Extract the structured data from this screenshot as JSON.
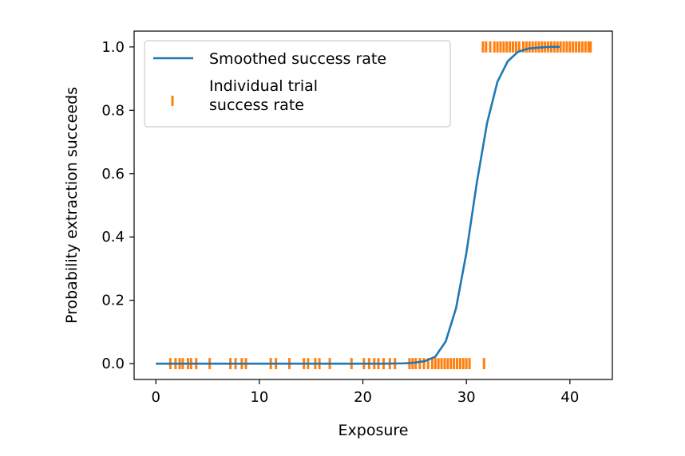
{
  "chart_data": {
    "type": "line",
    "title": "",
    "xlabel": "Exposure",
    "ylabel": "Probability extraction succeeds",
    "xlim": [
      -2.1,
      44.1
    ],
    "ylim": [
      -0.05,
      1.05
    ],
    "xticks": [
      0,
      10,
      20,
      30,
      40
    ],
    "xtick_labels": [
      "0",
      "10",
      "20",
      "30",
      "40"
    ],
    "yticks": [
      0.0,
      0.2,
      0.4,
      0.6,
      0.8,
      1.0
    ],
    "ytick_labels": [
      "0.0",
      "0.2",
      "0.4",
      "0.6",
      "0.8",
      "1.0"
    ],
    "grid": false,
    "legend_position": "top-left",
    "series": [
      {
        "name": "Smoothed success rate",
        "kind": "line",
        "color": "#1f77b4",
        "x": [
          0,
          2,
          4,
          6,
          8,
          10,
          12,
          14,
          16,
          18,
          20,
          22,
          24,
          25,
          26,
          27,
          28,
          29,
          30,
          31,
          32,
          33,
          34,
          35,
          36,
          37,
          38,
          39
        ],
        "y": [
          0,
          0,
          0,
          0,
          0,
          0,
          0,
          0,
          0,
          0,
          0,
          0,
          0.001,
          0.003,
          0.008,
          0.022,
          0.07,
          0.175,
          0.35,
          0.57,
          0.76,
          0.89,
          0.955,
          0.985,
          0.995,
          0.998,
          1.0,
          1.0
        ]
      },
      {
        "name": "Individual trial\nsuccess rate",
        "kind": "ticks",
        "color": "#ff7f0e",
        "points": [
          [
            1.4,
            0
          ],
          [
            1.9,
            0
          ],
          [
            2.3,
            0
          ],
          [
            2.6,
            0
          ],
          [
            3.1,
            0
          ],
          [
            3.4,
            0
          ],
          [
            3.9,
            0
          ],
          [
            5.2,
            0
          ],
          [
            7.2,
            0
          ],
          [
            7.7,
            0
          ],
          [
            8.3,
            0
          ],
          [
            8.7,
            0
          ],
          [
            11.1,
            0
          ],
          [
            11.6,
            0
          ],
          [
            12.9,
            0
          ],
          [
            14.3,
            0
          ],
          [
            14.7,
            0
          ],
          [
            15.4,
            0
          ],
          [
            15.8,
            0
          ],
          [
            16.8,
            0
          ],
          [
            18.9,
            0
          ],
          [
            20.1,
            0
          ],
          [
            20.6,
            0
          ],
          [
            21.1,
            0
          ],
          [
            21.5,
            0
          ],
          [
            22.0,
            0
          ],
          [
            22.6,
            0
          ],
          [
            23.1,
            0
          ],
          [
            24.5,
            0
          ],
          [
            24.8,
            0
          ],
          [
            25.1,
            0
          ],
          [
            25.5,
            0
          ],
          [
            25.9,
            0
          ],
          [
            26.3,
            0
          ],
          [
            26.7,
            0
          ],
          [
            27.0,
            0
          ],
          [
            27.3,
            0
          ],
          [
            27.6,
            0
          ],
          [
            27.9,
            0
          ],
          [
            28.2,
            0
          ],
          [
            28.5,
            0
          ],
          [
            28.8,
            0
          ],
          [
            29.1,
            0
          ],
          [
            29.4,
            0
          ],
          [
            29.7,
            0
          ],
          [
            30.0,
            0
          ],
          [
            30.3,
            0
          ],
          [
            31.7,
            0
          ],
          [
            31.6,
            1
          ],
          [
            31.9,
            1
          ],
          [
            32.3,
            1
          ],
          [
            32.7,
            1
          ],
          [
            33.0,
            1
          ],
          [
            33.3,
            1
          ],
          [
            33.6,
            1
          ],
          [
            33.9,
            1
          ],
          [
            34.2,
            1
          ],
          [
            34.5,
            1
          ],
          [
            34.8,
            1
          ],
          [
            35.1,
            1
          ],
          [
            35.5,
            1
          ],
          [
            35.8,
            1
          ],
          [
            36.1,
            1
          ],
          [
            36.4,
            1
          ],
          [
            36.7,
            1
          ],
          [
            37.0,
            1
          ],
          [
            37.3,
            1
          ],
          [
            37.6,
            1
          ],
          [
            37.9,
            1
          ],
          [
            38.2,
            1
          ],
          [
            38.5,
            1
          ],
          [
            38.8,
            1
          ],
          [
            39.1,
            1
          ],
          [
            39.4,
            1
          ],
          [
            39.7,
            1
          ],
          [
            40.0,
            1
          ],
          [
            40.3,
            1
          ],
          [
            40.6,
            1
          ],
          [
            40.9,
            1
          ],
          [
            41.2,
            1
          ],
          [
            41.5,
            1
          ],
          [
            41.8,
            1
          ],
          [
            42.0,
            1
          ]
        ]
      }
    ]
  }
}
